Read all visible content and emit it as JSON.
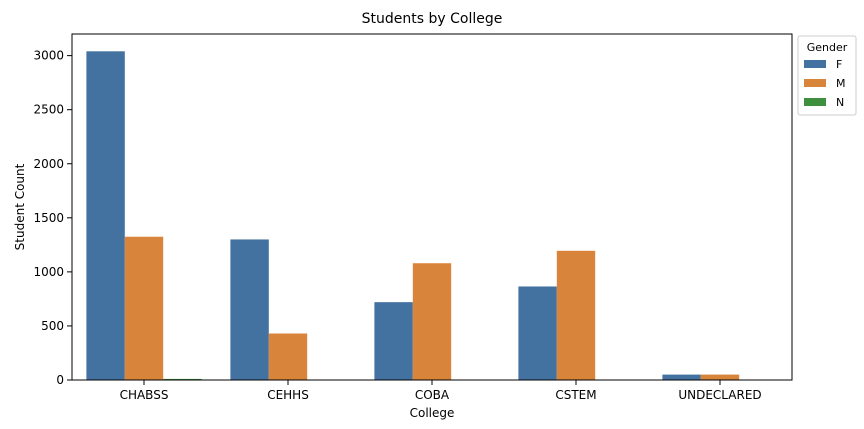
{
  "chart_data": {
    "type": "bar",
    "title": "Students by College",
    "xlabel": "College",
    "ylabel": "Student Count",
    "categories": [
      "CHABSS",
      "CEHHS",
      "COBA",
      "CSTEM",
      "UNDECLARED"
    ],
    "series": [
      {
        "name": "F",
        "color": "#4472a0",
        "values": [
          3040,
          1300,
          720,
          865,
          50
        ]
      },
      {
        "name": "M",
        "color": "#d9843b",
        "values": [
          1325,
          430,
          1080,
          1195,
          50
        ]
      },
      {
        "name": "N",
        "color": "#3e8f3e",
        "values": [
          10,
          0,
          0,
          0,
          0
        ]
      }
    ],
    "ylim": [
      0,
      3200
    ],
    "yticks": [
      0,
      500,
      1000,
      1500,
      2000,
      2500,
      3000
    ],
    "grid": false,
    "legend": {
      "title": "Gender",
      "placement": "outside top-right"
    }
  }
}
